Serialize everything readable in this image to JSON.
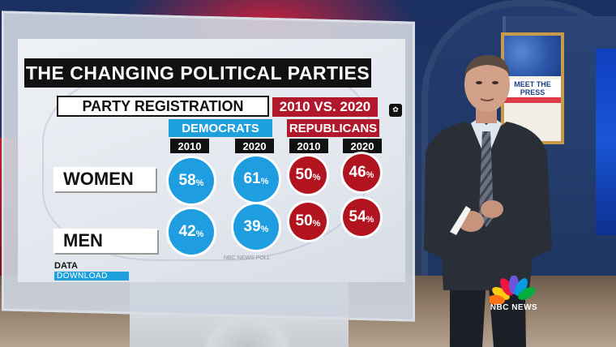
{
  "graphic": {
    "title": "THE CHANGING POLITICAL PARTIES",
    "subtitle": "PARTY REGISTRATION",
    "year_range": "2010 VS. 2020",
    "parties": [
      "DEMOCRATS",
      "REPUBLICANS"
    ],
    "years": [
      "2010",
      "2020",
      "2010",
      "2020"
    ],
    "rows": [
      {
        "label": "WOMEN",
        "values": [
          "58",
          "61",
          "50",
          "46"
        ]
      },
      {
        "label": "MEN",
        "values": [
          "42",
          "39",
          "50",
          "54"
        ]
      }
    ],
    "pct_sign": "%",
    "data_download_top": "DATA",
    "data_download_bottom": "DOWNLOAD",
    "poll_credit": "NBC NEWS POLL"
  },
  "poster": {
    "text": "MEET THE PRESS"
  },
  "network_logo": {
    "text": "NBC NEWS"
  },
  "colors": {
    "democrat": "#1e9ee0",
    "republican": "#b2141f",
    "title_bg": "#111111"
  },
  "icons": [
    "nbc-peacock-icon"
  ]
}
